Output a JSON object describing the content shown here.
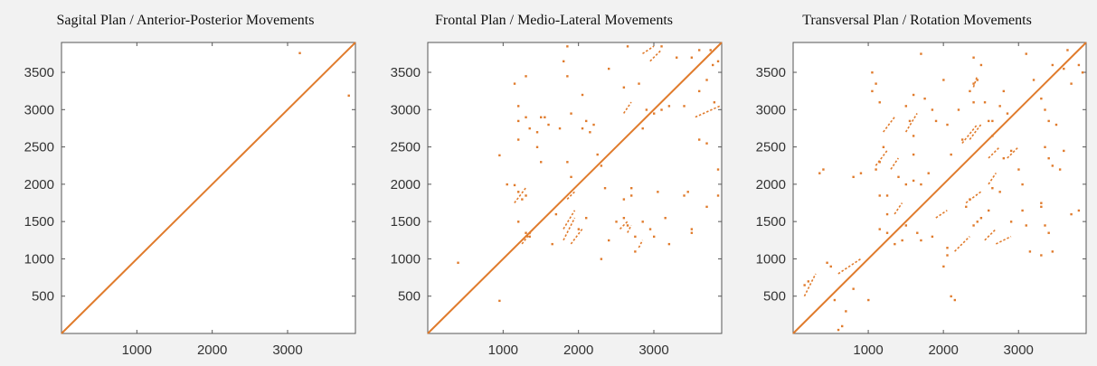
{
  "figure": {
    "accent_color": "#e07b2c",
    "background": "#f2f2f2"
  },
  "chart_data": [
    {
      "type": "scatter",
      "subtype": "recurrence-plot",
      "title": "Sagital Plan / Anterior-Posterior Movements",
      "xlabel": "",
      "ylabel": "",
      "xlim": [
        0,
        3900
      ],
      "ylim": [
        0,
        3900
      ],
      "xticks": [
        1000,
        2000,
        3000
      ],
      "yticks": [
        500,
        1000,
        1500,
        2000,
        2500,
        3000,
        3500
      ],
      "diagonal": true,
      "color": "#e07b2c",
      "points": [
        [
          3160,
          3760
        ],
        [
          3810,
          3190
        ]
      ],
      "segments": []
    },
    {
      "type": "scatter",
      "subtype": "recurrence-plot",
      "title": "Frontal Plan / Medio-Lateral Movements",
      "xlabel": "",
      "ylabel": "",
      "xlim": [
        0,
        3900
      ],
      "ylim": [
        0,
        3900
      ],
      "xticks": [
        1000,
        2000,
        3000
      ],
      "yticks": [
        500,
        1000,
        1500,
        2000,
        2500,
        3000,
        3500
      ],
      "diagonal": true,
      "color": "#e07b2c",
      "points": [
        [
          950,
          440
        ],
        [
          950,
          2390
        ],
        [
          400,
          950
        ],
        [
          1150,
          1990
        ],
        [
          1200,
          1900
        ],
        [
          1250,
          1800
        ],
        [
          1300,
          1850
        ],
        [
          1200,
          1500
        ],
        [
          1300,
          1350
        ],
        [
          1350,
          1300
        ],
        [
          1300,
          3450
        ],
        [
          1150,
          3350
        ],
        [
          1200,
          3050
        ],
        [
          1300,
          2900
        ],
        [
          1200,
          2850
        ],
        [
          1200,
          2600
        ],
        [
          1450,
          2500
        ],
        [
          1500,
          2300
        ],
        [
          1600,
          2800
        ],
        [
          1750,
          2750
        ],
        [
          1850,
          2300
        ],
        [
          1900,
          2100
        ],
        [
          1900,
          2950
        ],
        [
          1800,
          3650
        ],
        [
          1850,
          3450
        ],
        [
          2050,
          3200
        ],
        [
          2100,
          2850
        ],
        [
          2150,
          2700
        ],
        [
          2250,
          2400
        ],
        [
          2300,
          2250
        ],
        [
          2350,
          1950
        ],
        [
          2400,
          1250
        ],
        [
          2300,
          1000
        ],
        [
          2600,
          3300
        ],
        [
          2600,
          1800
        ],
        [
          2700,
          1850
        ],
        [
          2700,
          1950
        ],
        [
          2750,
          1300
        ],
        [
          2750,
          1100
        ],
        [
          2950,
          1400
        ],
        [
          3000,
          1300
        ],
        [
          3050,
          1900
        ],
        [
          3150,
          1550
        ],
        [
          3200,
          1200
        ],
        [
          3400,
          1850
        ],
        [
          3450,
          1900
        ],
        [
          3500,
          1350
        ],
        [
          3500,
          1400
        ],
        [
          3600,
          2600
        ],
        [
          3700,
          2550
        ],
        [
          3400,
          3050
        ],
        [
          3600,
          3250
        ],
        [
          3700,
          3400
        ],
        [
          3780,
          3600
        ],
        [
          3800,
          3100
        ],
        [
          3850,
          2200
        ],
        [
          3850,
          1850
        ],
        [
          3700,
          1700
        ],
        [
          2400,
          3550
        ],
        [
          2650,
          3850
        ],
        [
          3100,
          3850
        ],
        [
          2900,
          3000
        ],
        [
          3000,
          2950
        ],
        [
          3100,
          3000
        ],
        [
          3200,
          3050
        ],
        [
          2850,
          2750
        ],
        [
          2800,
          3350
        ],
        [
          2200,
          2800
        ],
        [
          2050,
          2750
        ],
        [
          1050,
          2000
        ],
        [
          1650,
          1200
        ],
        [
          1700,
          1600
        ],
        [
          2100,
          1550
        ],
        [
          2000,
          1400
        ],
        [
          2600,
          1550
        ],
        [
          2650,
          1450
        ],
        [
          2500,
          1500
        ],
        [
          2850,
          1500
        ],
        [
          1500,
          2900
        ],
        [
          1450,
          2700
        ],
        [
          1350,
          2750
        ],
        [
          1550,
          2900
        ],
        [
          1850,
          3850
        ],
        [
          3300,
          3700
        ],
        [
          3500,
          3700
        ],
        [
          3600,
          3800
        ],
        [
          3750,
          3800
        ],
        [
          3850,
          3650
        ]
      ],
      "segments": [
        [
          [
            1150,
            1750
          ],
          [
            1300,
            1950
          ]
        ],
        [
          [
            1800,
            1250
          ],
          [
            1950,
            1550
          ]
        ],
        [
          [
            1900,
            1200
          ],
          [
            2050,
            1400
          ]
        ],
        [
          [
            1800,
            1400
          ],
          [
            1950,
            1650
          ]
        ],
        [
          [
            2550,
            1400
          ],
          [
            2650,
            1500
          ]
        ],
        [
          [
            2800,
            1150
          ],
          [
            2850,
            1250
          ]
        ],
        [
          [
            2850,
            3750
          ],
          [
            3000,
            3850
          ]
        ],
        [
          [
            2950,
            3650
          ],
          [
            3100,
            3800
          ]
        ],
        [
          [
            3550,
            2900
          ],
          [
            3880,
            3050
          ]
        ],
        [
          [
            2600,
            2950
          ],
          [
            2700,
            3100
          ]
        ],
        [
          [
            2650,
            1350
          ],
          [
            2700,
            1450
          ]
        ],
        [
          [
            1250,
            1200
          ],
          [
            1400,
            1400
          ]
        ],
        [
          [
            1850,
            1800
          ],
          [
            1950,
            1900
          ]
        ]
      ]
    },
    {
      "type": "scatter",
      "subtype": "recurrence-plot",
      "title": "Transversal Plan / Rotation Movements",
      "xlabel": "",
      "ylabel": "",
      "xlim": [
        0,
        3900
      ],
      "ylim": [
        0,
        3900
      ],
      "xticks": [
        1000,
        2000,
        3000
      ],
      "yticks": [
        500,
        1000,
        1500,
        2000,
        2500,
        3000,
        3500
      ],
      "diagonal": true,
      "color": "#e07b2c",
      "points": [
        [
          150,
          650
        ],
        [
          200,
          700
        ],
        [
          600,
          50
        ],
        [
          650,
          100
        ],
        [
          700,
          300
        ],
        [
          450,
          950
        ],
        [
          500,
          900
        ],
        [
          550,
          450
        ],
        [
          800,
          600
        ],
        [
          1000,
          450
        ],
        [
          350,
          2150
        ],
        [
          400,
          2200
        ],
        [
          800,
          2100
        ],
        [
          900,
          2150
        ],
        [
          1050,
          3500
        ],
        [
          1050,
          3250
        ],
        [
          1150,
          2300
        ],
        [
          1100,
          2200
        ],
        [
          1150,
          1850
        ],
        [
          1250,
          1600
        ],
        [
          1250,
          1350
        ],
        [
          1150,
          1400
        ],
        [
          1450,
          1250
        ],
        [
          1350,
          1200
        ],
        [
          1250,
          1850
        ],
        [
          1200,
          2500
        ],
        [
          1550,
          2850
        ],
        [
          1600,
          2650
        ],
        [
          1600,
          2400
        ],
        [
          1850,
          3000
        ],
        [
          1500,
          3050
        ],
        [
          1700,
          2000
        ],
        [
          1800,
          2150
        ],
        [
          2050,
          2800
        ],
        [
          2100,
          2400
        ],
        [
          2250,
          2600
        ],
        [
          2400,
          3350
        ],
        [
          2450,
          3400
        ],
        [
          2550,
          3100
        ],
        [
          2600,
          2850
        ],
        [
          2650,
          2650
        ],
        [
          2800,
          2350
        ],
        [
          2900,
          2450
        ],
        [
          3000,
          2200
        ],
        [
          3050,
          2000
        ],
        [
          3050,
          1650
        ],
        [
          3300,
          1700
        ],
        [
          3350,
          1450
        ],
        [
          3400,
          1350
        ],
        [
          3300,
          1050
        ],
        [
          3450,
          1100
        ],
        [
          3100,
          1450
        ],
        [
          2900,
          1500
        ],
        [
          2600,
          1650
        ],
        [
          2500,
          1550
        ],
        [
          2450,
          1500
        ],
        [
          2300,
          1700
        ],
        [
          2350,
          1800
        ],
        [
          2650,
          1950
        ],
        [
          2750,
          1900
        ],
        [
          2400,
          1450
        ],
        [
          2050,
          1150
        ],
        [
          2000,
          900
        ],
        [
          2100,
          500
        ],
        [
          2150,
          450
        ],
        [
          2650,
          2850
        ],
        [
          2750,
          3050
        ],
        [
          2800,
          3250
        ],
        [
          3300,
          3150
        ],
        [
          3350,
          3000
        ],
        [
          3400,
          2850
        ],
        [
          3350,
          2500
        ],
        [
          3200,
          3400
        ],
        [
          3500,
          2800
        ],
        [
          3450,
          3600
        ],
        [
          3600,
          3550
        ],
        [
          3700,
          3350
        ],
        [
          3650,
          3800
        ],
        [
          3800,
          1650
        ],
        [
          3700,
          1600
        ],
        [
          3150,
          1100
        ],
        [
          3300,
          1750
        ],
        [
          3850,
          3500
        ],
        [
          3800,
          3600
        ],
        [
          2850,
          2950
        ],
        [
          2000,
          3400
        ],
        [
          1900,
          2850
        ],
        [
          1600,
          2050
        ],
        [
          1500,
          2000
        ],
        [
          1400,
          2100
        ],
        [
          1500,
          1450
        ],
        [
          1650,
          1350
        ],
        [
          1700,
          1250
        ],
        [
          1850,
          1300
        ],
        [
          2200,
          3000
        ],
        [
          2350,
          3250
        ],
        [
          2400,
          3100
        ],
        [
          2050,
          1050
        ],
        [
          3400,
          2350
        ],
        [
          3450,
          2250
        ],
        [
          3550,
          2200
        ],
        [
          3600,
          2450
        ],
        [
          1100,
          3350
        ],
        [
          1150,
          3100
        ],
        [
          1600,
          3200
        ],
        [
          1750,
          3150
        ],
        [
          1700,
          3750
        ],
        [
          2400,
          3700
        ],
        [
          2500,
          3600
        ],
        [
          3100,
          3750
        ]
      ],
      "segments": [
        [
          [
            150,
            500
          ],
          [
            300,
            800
          ]
        ],
        [
          [
            1100,
            2250
          ],
          [
            1250,
            2450
          ]
        ],
        [
          [
            1200,
            2700
          ],
          [
            1350,
            2900
          ]
        ],
        [
          [
            1500,
            2700
          ],
          [
            1650,
            2950
          ]
        ],
        [
          [
            1350,
            1600
          ],
          [
            1450,
            1750
          ]
        ],
        [
          [
            2150,
            1100
          ],
          [
            2350,
            1300
          ]
        ],
        [
          [
            2250,
            2550
          ],
          [
            2450,
            2800
          ]
        ],
        [
          [
            2600,
            2350
          ],
          [
            2750,
            2500
          ]
        ],
        [
          [
            2700,
            1200
          ],
          [
            2900,
            1300
          ]
        ],
        [
          [
            2550,
            1250
          ],
          [
            2700,
            1400
          ]
        ],
        [
          [
            2300,
            1750
          ],
          [
            2500,
            1900
          ]
        ],
        [
          [
            2350,
            2600
          ],
          [
            2500,
            2800
          ]
        ],
        [
          [
            600,
            800
          ],
          [
            900,
            1000
          ]
        ],
        [
          [
            2600,
            2000
          ],
          [
            2700,
            2150
          ]
        ],
        [
          [
            2850,
            2350
          ],
          [
            3000,
            2500
          ]
        ],
        [
          [
            2400,
            3300
          ],
          [
            2450,
            3450
          ]
        ],
        [
          [
            1300,
            2200
          ],
          [
            1400,
            2350
          ]
        ],
        [
          [
            1900,
            1550
          ],
          [
            2050,
            1650
          ]
        ]
      ]
    }
  ]
}
